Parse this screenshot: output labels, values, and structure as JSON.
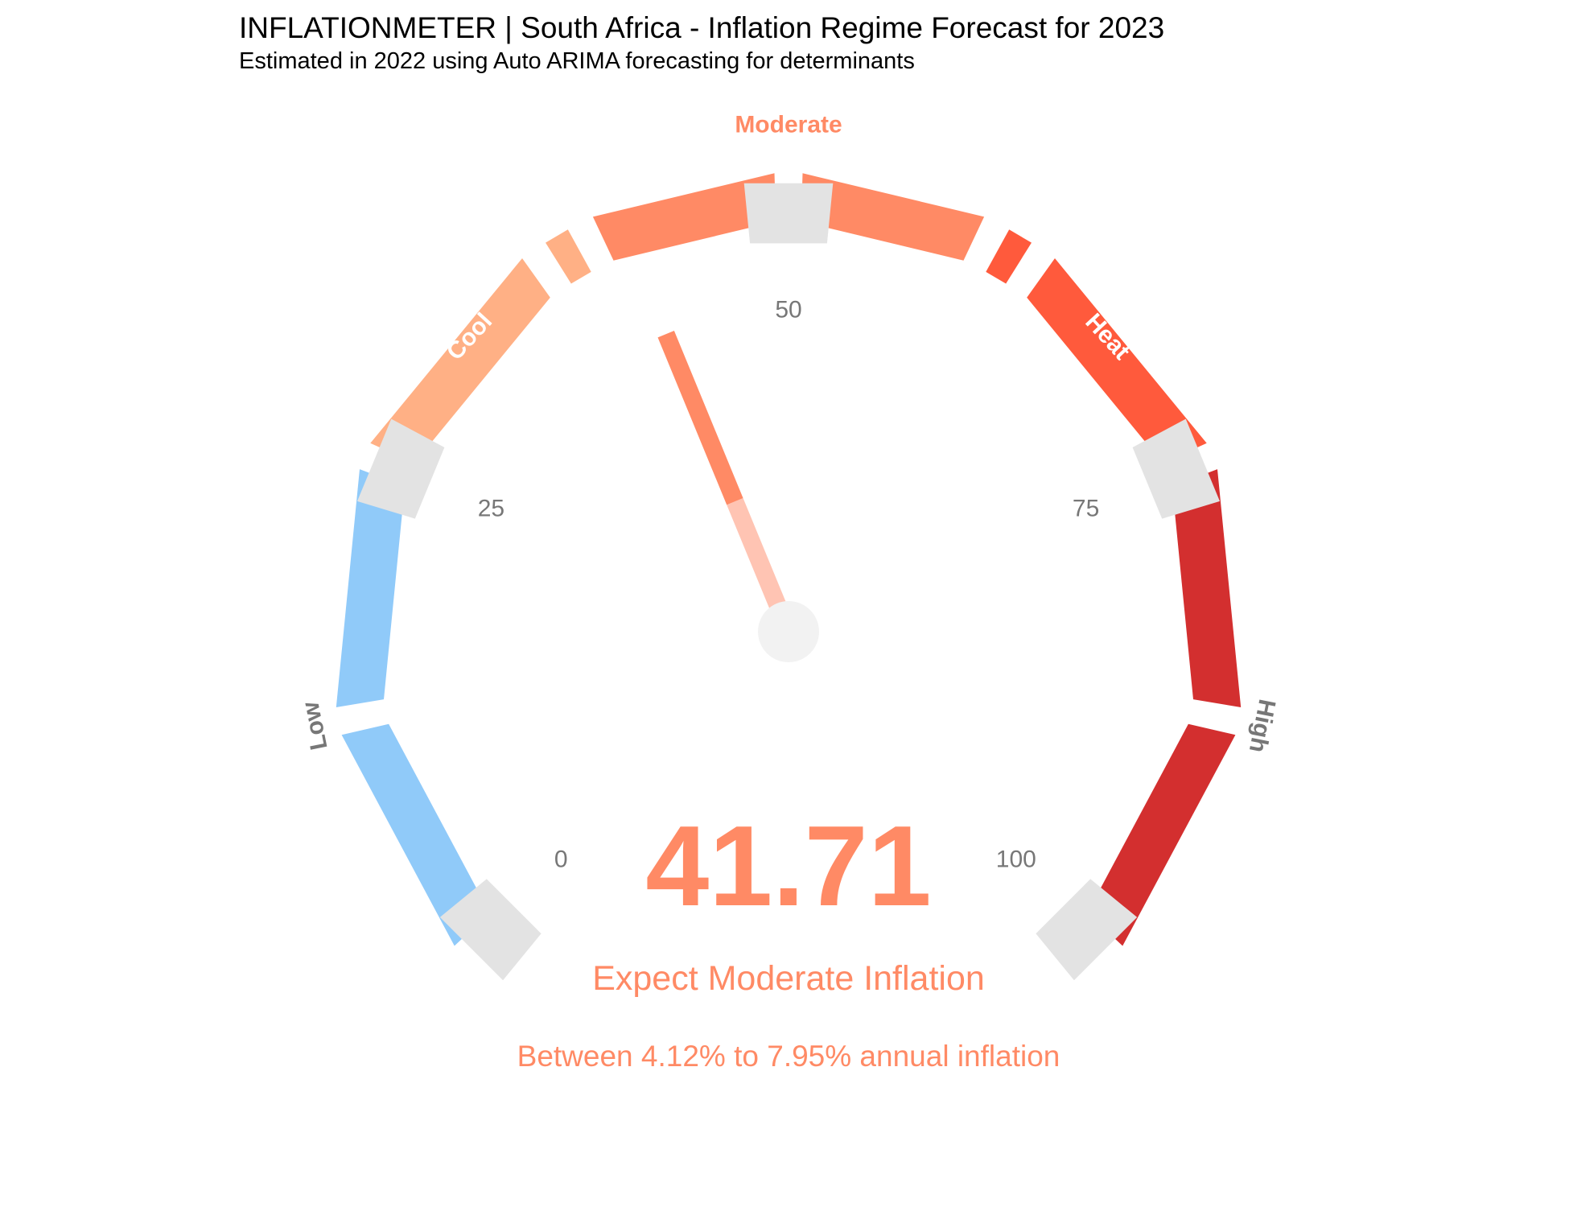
{
  "title": "INFLATIONMETER | South Africa - Inflation Regime Forecast for 2023",
  "subtitle": "Estimated in 2022 using Auto ARIMA forecasting for determinants",
  "chart_data": {
    "type": "gauge",
    "range": [
      0,
      100
    ],
    "value": 41.71,
    "value_label": "41.71",
    "regime_text": "Expect Moderate Inflation",
    "range_text": "Between 4.12% to 7.95% annual inflation",
    "ticks": [
      {
        "value": 0,
        "label": "0"
      },
      {
        "value": 25,
        "label": "25"
      },
      {
        "value": 50,
        "label": "50"
      },
      {
        "value": 75,
        "label": "75"
      },
      {
        "value": 100,
        "label": "100"
      }
    ],
    "bands": [
      {
        "name": "Low",
        "from": 0,
        "to": 25,
        "color": "#90caf9",
        "label_color": "#777777"
      },
      {
        "name": "Cool",
        "from": 25,
        "to": 40,
        "color": "#ffb085",
        "label_color": "#ffffff"
      },
      {
        "name": "Moderate",
        "from": 40,
        "to": 60,
        "color": "#ff8a65",
        "label_color": "#ff8a65"
      },
      {
        "name": "Heat",
        "from": 60,
        "to": 75,
        "color": "#ff5a3c",
        "label_color": "#ffffff"
      },
      {
        "name": "High",
        "from": 75,
        "to": 100,
        "color": "#d32f2f",
        "label_color": "#777777"
      }
    ],
    "colors": {
      "accent": "#ff8a65",
      "needle_base": "#ffc4b3",
      "tick_marker": "#e3e3e3",
      "hub": "#f2f2f2",
      "tick_label": "#777777"
    }
  }
}
